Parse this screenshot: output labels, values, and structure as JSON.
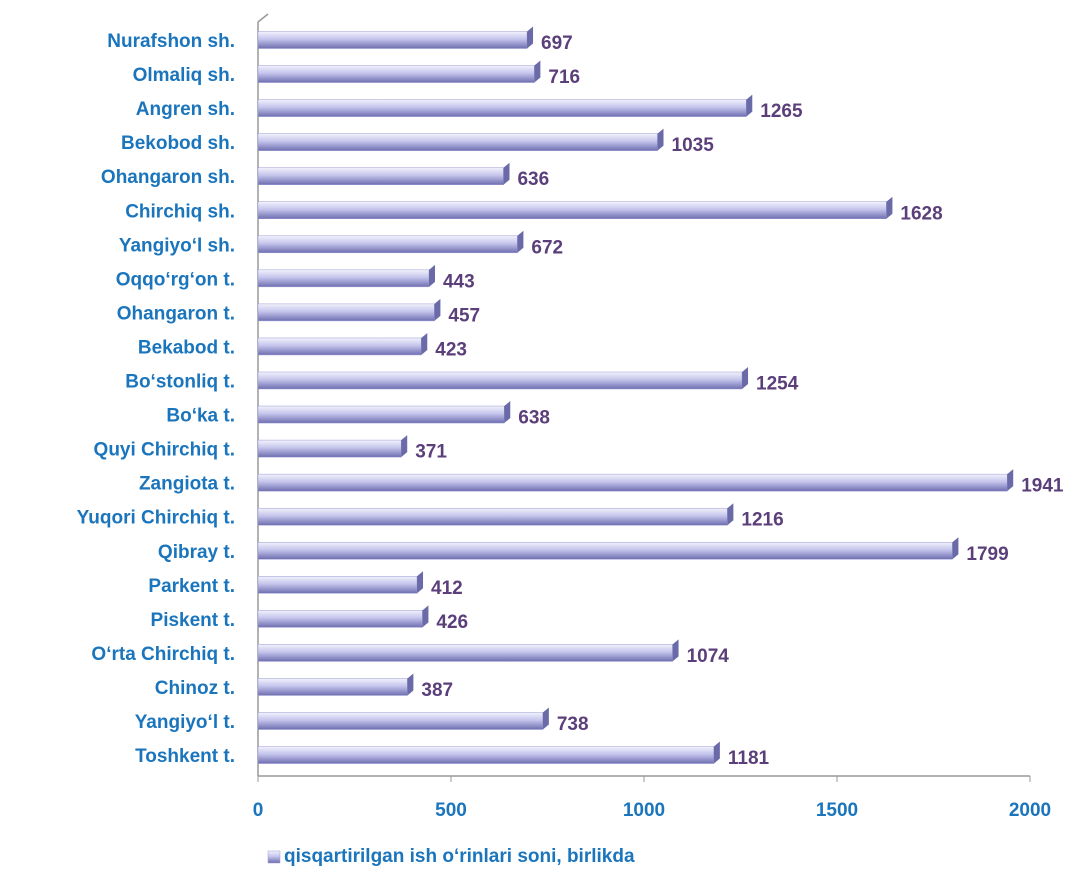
{
  "chart_data": {
    "type": "bar",
    "orientation": "horizontal",
    "categories": [
      "Nurafshon sh.",
      "Olmaliq sh.",
      "Angren sh.",
      "Bekobod sh.",
      "Ohangaron sh.",
      "Chirchiq sh.",
      "Yangiyo‘l sh.",
      "Oqqo‘rg‘on t.",
      "Ohangaron  t.",
      "Bekabod t.",
      "Bo‘stonliq t.",
      "Bo‘ka t.",
      "Quyi Chirchiq t.",
      "Zangiota t.",
      "Yuqori Chirchiq t.",
      "Qibray t.",
      "Parkent t.",
      "Piskent t.",
      "O‘rta Chirchiq t.",
      "Chinoz t.",
      "Yangiyo‘l t.",
      "Toshkent t."
    ],
    "series": [
      {
        "name": "qisqartirilgan ish o‘rinlari soni, birlikda",
        "color": "#9a9ad6",
        "values": [
          697,
          716,
          1265,
          1035,
          636,
          1628,
          672,
          443,
          457,
          423,
          1254,
          638,
          371,
          1941,
          1216,
          1799,
          412,
          426,
          1074,
          387,
          738,
          1181
        ]
      }
    ],
    "xlim": [
      0,
      2000
    ],
    "xticks": [
      0,
      500,
      1000,
      1500,
      2000
    ],
    "legend": "bottom"
  }
}
